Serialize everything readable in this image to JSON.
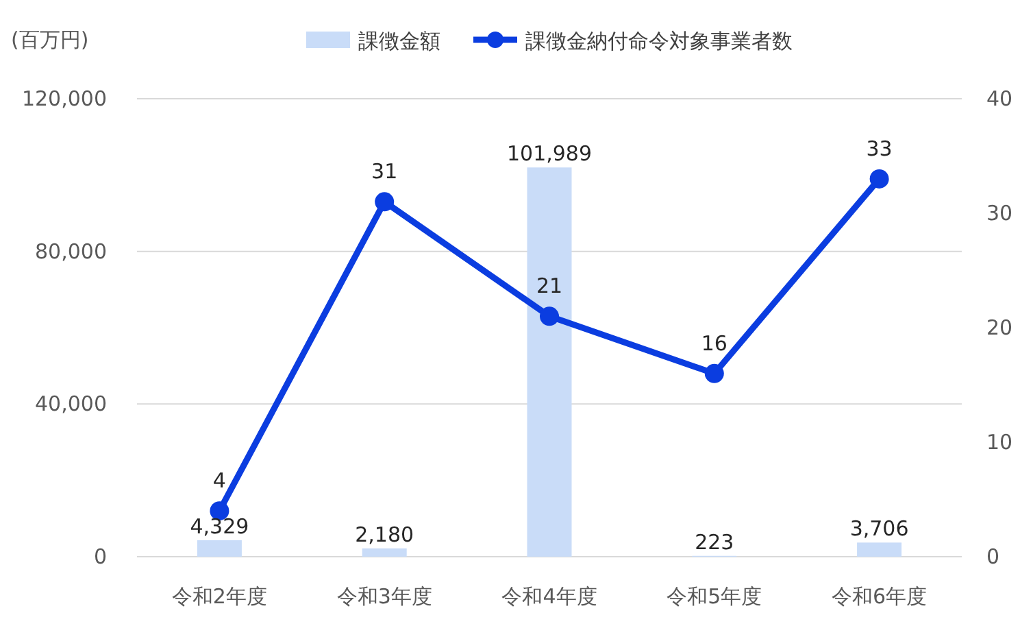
{
  "chart_data": {
    "type": "bar",
    "ylabel": "(百万円)",
    "categories": [
      "令和2年度",
      "令和3年度",
      "令和4年度",
      "令和5年度",
      "令和6年度"
    ],
    "series": [
      {
        "name": "課徴金額",
        "color": "#c9dcf8",
        "values": [
          4329,
          2180,
          101989,
          223,
          3706
        ],
        "value_labels": [
          "4,329",
          "2,180",
          "101,989",
          "223",
          "3,706"
        ]
      },
      {
        "name": "課徴金納付命令対象事業者数",
        "type": "line",
        "axis": "y2",
        "color": "#0b3de0",
        "values": [
          4,
          31,
          21,
          16,
          33
        ],
        "value_labels": [
          "4",
          "31",
          "21",
          "16",
          "33"
        ]
      }
    ],
    "ylim": [
      0,
      120000
    ],
    "yticks": [
      0,
      {
        "value": 40000,
        "label": "40,000"
      },
      {
        "value": 80000,
        "label": "80,000"
      },
      {
        "value": 120000,
        "label": "120,000"
      }
    ],
    "y2lim": [
      0,
      40
    ],
    "y2ticks": [
      0,
      10,
      20,
      30,
      40
    ],
    "grid": "y",
    "legend": "top",
    "marker": "circle",
    "line_style": "solid"
  }
}
